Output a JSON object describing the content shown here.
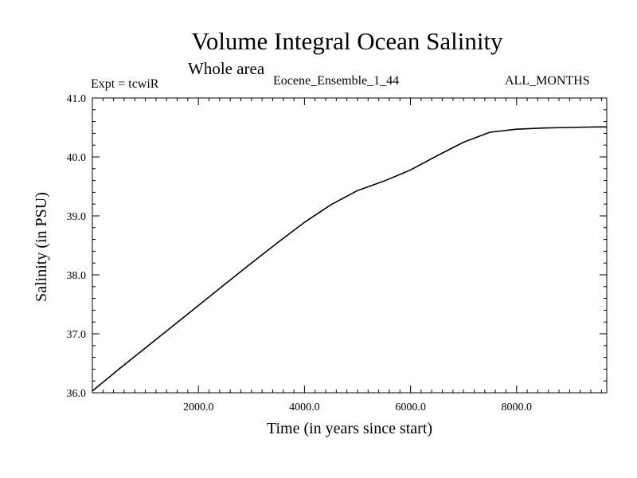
{
  "chart_data": {
    "type": "line",
    "title": "Volume Integral Ocean Salinity",
    "subtitle": "Whole area",
    "annotations": {
      "experiment": "Expt = tcwiR",
      "run": "Eocene_Ensemble_1_44",
      "months": "ALL_MONTHS"
    },
    "xlabel": "Time (in years since start)",
    "ylabel": "Salinity (in PSU)",
    "xlim": [
      0,
      9700
    ],
    "ylim": [
      36.0,
      41.0
    ],
    "x_ticks": [
      2000,
      4000,
      6000,
      8000
    ],
    "x_tick_labels": [
      "2000.0",
      "4000.0",
      "6000.0",
      "8000.0"
    ],
    "y_ticks": [
      36.0,
      37.0,
      38.0,
      39.0,
      40.0,
      41.0
    ],
    "y_tick_labels": [
      "36.0",
      "37.0",
      "38.0",
      "39.0",
      "40.0",
      "41.0"
    ],
    "grid": false,
    "series": [
      {
        "color": "#000000",
        "x": [
          0,
          500,
          1000,
          1500,
          2000,
          2500,
          3000,
          3500,
          4000,
          4500,
          5000,
          5500,
          6000,
          6500,
          7000,
          7500,
          8000,
          8500,
          9000,
          9500,
          9700
        ],
        "y": [
          36.03,
          36.4,
          36.76,
          37.12,
          37.48,
          37.84,
          38.2,
          38.55,
          38.89,
          39.19,
          39.43,
          39.59,
          39.78,
          40.02,
          40.25,
          40.42,
          40.47,
          40.49,
          40.5,
          40.51,
          40.51
        ]
      }
    ]
  }
}
